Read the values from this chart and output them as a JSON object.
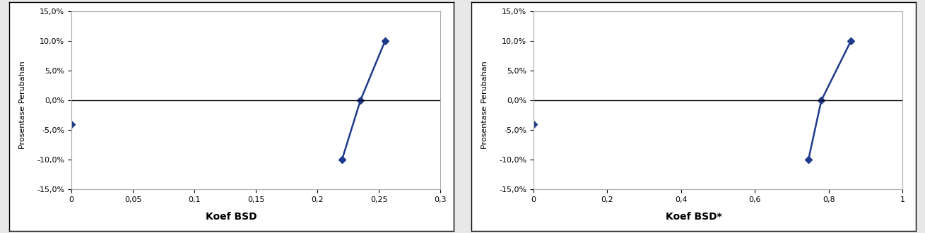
{
  "chart1": {
    "xlabel": "Koef BSD",
    "ylabel": "Prosentase Perubahan",
    "xlim": [
      0,
      0.3
    ],
    "ylim": [
      -0.15,
      0.15
    ],
    "xticks": [
      0,
      0.05,
      0.1,
      0.15,
      0.2,
      0.25,
      0.3
    ],
    "xtick_labels": [
      "0",
      "0,05",
      "0,1",
      "0,15",
      "0,2",
      "0,25",
      "0,3"
    ],
    "yticks": [
      -0.15,
      -0.1,
      -0.05,
      0.0,
      0.05,
      0.1,
      0.15
    ],
    "ytick_labels": [
      "-15,0%",
      "-10,0%",
      "-5,0%",
      "0,0%",
      "5,0%",
      "10,0%",
      "15,0%"
    ],
    "line_x": [
      0.22,
      0.235,
      0.255
    ],
    "line_y": [
      -0.1,
      0.0,
      0.1
    ],
    "dot_x": [
      0.0
    ],
    "dot_y": [
      -0.04
    ],
    "line_color": "#1F3A8A",
    "dot_color": "#1F3A8A",
    "marker": "D",
    "markersize": 5
  },
  "chart2": {
    "xlabel": "Koef BSD*",
    "ylabel": "Prosentase Perubahan",
    "xlim": [
      0,
      1.0
    ],
    "ylim": [
      -0.15,
      0.15
    ],
    "xticks": [
      0,
      0.2,
      0.4,
      0.6,
      0.8,
      1.0
    ],
    "xtick_labels": [
      "0",
      "0,2",
      "0,4",
      "0,6",
      "0,8",
      "1"
    ],
    "yticks": [
      -0.15,
      -0.1,
      -0.05,
      0.0,
      0.05,
      0.1,
      0.15
    ],
    "ytick_labels": [
      "-15,0%",
      "-10,0%",
      "-5,0%",
      "0,0%",
      "5,0%",
      "10,0%",
      "15,0%"
    ],
    "line_x": [
      0.745,
      0.78,
      0.86
    ],
    "line_y": [
      -0.1,
      0.0,
      0.1
    ],
    "dot_x": [
      0.0
    ],
    "dot_y": [
      -0.04
    ],
    "line_color": "#1F3A8A",
    "dot_color": "#1F3A8A",
    "marker": "D",
    "markersize": 5
  },
  "bg_color": "#ffffff",
  "outer_bg": "#e8e8e8",
  "ylabel_fontsize": 8,
  "xlabel_fontsize": 10,
  "tick_fontsize": 8,
  "xlabel_fontweight": "bold"
}
